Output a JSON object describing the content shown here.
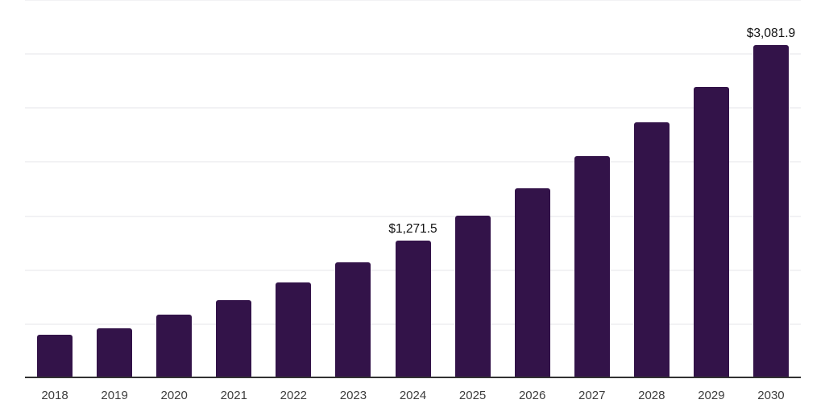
{
  "chart_data": {
    "type": "bar",
    "categories": [
      "2018",
      "2019",
      "2020",
      "2021",
      "2022",
      "2023",
      "2024",
      "2025",
      "2026",
      "2027",
      "2028",
      "2029",
      "2030"
    ],
    "values": [
      402,
      462,
      588,
      722,
      886,
      1072,
      1271.5,
      1502,
      1755,
      2053,
      2366,
      2698,
      3081.9
    ],
    "data_labels": {
      "2024": "$1,271.5",
      "2030": "$3,081.9"
    },
    "title": "",
    "xlabel": "",
    "ylabel": "",
    "ylim": [
      0,
      3500
    ],
    "gridline_interval": 500,
    "grid": "horizontal",
    "legend": "none",
    "bar_color": "#331349",
    "gridline_color": "#f2f2f4",
    "axis_line_color": "#323232",
    "tick_label_color": "#3d3d3d",
    "value_label_color": "#111111"
  }
}
